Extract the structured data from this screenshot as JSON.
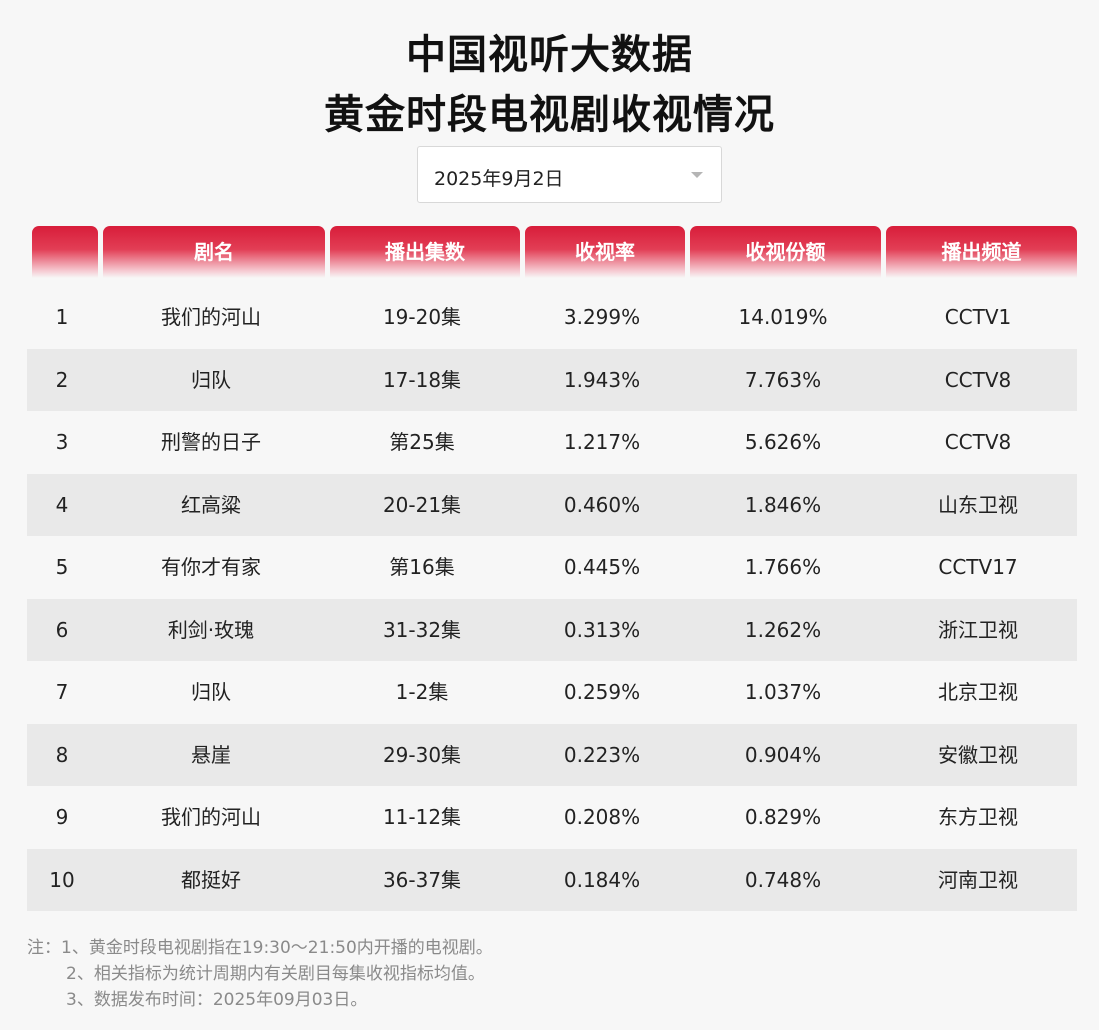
{
  "title": {
    "line1": "中国视听大数据",
    "line2": "黄金时段电视剧收视情况"
  },
  "date_select": {
    "value": "2025年9月2日"
  },
  "table": {
    "headers": [
      "",
      "剧名",
      "播出集数",
      "收视率",
      "收视份额",
      "播出频道"
    ],
    "rows": [
      {
        "rank": "1",
        "name": "我们的河山",
        "episodes": "19-20集",
        "rating": "3.299%",
        "share": "14.019%",
        "channel": "CCTV1"
      },
      {
        "rank": "2",
        "name": "归队",
        "episodes": "17-18集",
        "rating": "1.943%",
        "share": "7.763%",
        "channel": "CCTV8"
      },
      {
        "rank": "3",
        "name": "刑警的日子",
        "episodes": "第25集",
        "rating": "1.217%",
        "share": "5.626%",
        "channel": "CCTV8"
      },
      {
        "rank": "4",
        "name": "红高粱",
        "episodes": "20-21集",
        "rating": "0.460%",
        "share": "1.846%",
        "channel": "山东卫视"
      },
      {
        "rank": "5",
        "name": "有你才有家",
        "episodes": "第16集",
        "rating": "0.445%",
        "share": "1.766%",
        "channel": "CCTV17"
      },
      {
        "rank": "6",
        "name": "利剑·玫瑰",
        "episodes": "31-32集",
        "rating": "0.313%",
        "share": "1.262%",
        "channel": "浙江卫视"
      },
      {
        "rank": "7",
        "name": "归队",
        "episodes": "1-2集",
        "rating": "0.259%",
        "share": "1.037%",
        "channel": "北京卫视"
      },
      {
        "rank": "8",
        "name": "悬崖",
        "episodes": "29-30集",
        "rating": "0.223%",
        "share": "0.904%",
        "channel": "安徽卫视"
      },
      {
        "rank": "9",
        "name": "我们的河山",
        "episodes": "11-12集",
        "rating": "0.208%",
        "share": "0.829%",
        "channel": "东方卫视"
      },
      {
        "rank": "10",
        "name": "都挺好",
        "episodes": "36-37集",
        "rating": "0.184%",
        "share": "0.748%",
        "channel": "河南卫视"
      }
    ]
  },
  "notes": {
    "line1": "注：1、黄金时段电视剧指在19:30～21:50内开播的电视剧。",
    "line2": "2、相关指标为统计周期内有关剧目每集收视指标均值。",
    "line3": "3、数据发布时间：2025年09月03日。"
  },
  "colors": {
    "header_red": "#d81d3a",
    "alt_row": "#e9e9e9",
    "background": "#f7f7f7"
  }
}
